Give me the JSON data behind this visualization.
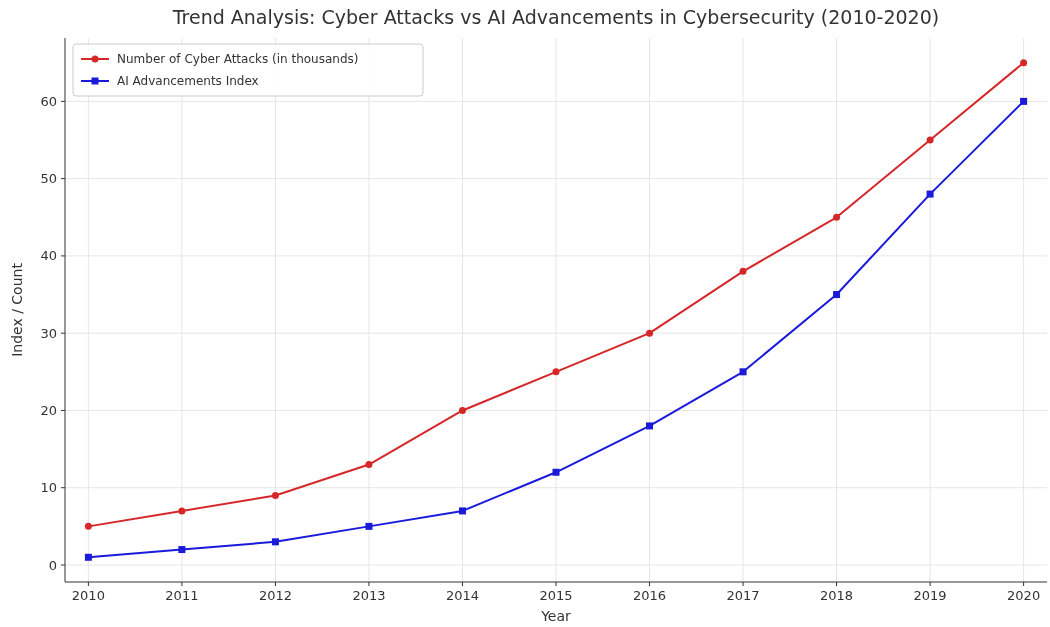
{
  "chart_data": {
    "type": "line",
    "title": "Trend Analysis: Cyber Attacks vs AI Advancements in Cybersecurity (2010-2020)",
    "xlabel": "Year",
    "ylabel": "Index / Count",
    "x": [
      2010,
      2011,
      2012,
      2013,
      2014,
      2015,
      2016,
      2017,
      2018,
      2019,
      2020
    ],
    "xlim": [
      2009.75,
      2020.25
    ],
    "xticks": [
      2010,
      2011,
      2012,
      2013,
      2014,
      2015,
      2016,
      2017,
      2018,
      2019,
      2020
    ],
    "ylim": [
      -2.2,
      68.2
    ],
    "yticks": [
      0,
      10,
      20,
      30,
      40,
      50,
      60
    ],
    "grid": true,
    "legend": "top left",
    "series": [
      {
        "name": "Number of Cyber Attacks (in thousands)",
        "color": "#d62728",
        "marker": "circle",
        "values": [
          5,
          7,
          9,
          13,
          20,
          25,
          30,
          38,
          45,
          55,
          65
        ]
      },
      {
        "name": "AI Advancements Index",
        "color": "#1a1adb",
        "marker": "square",
        "values": [
          1,
          2,
          3,
          5,
          7,
          12,
          18,
          25,
          35,
          48,
          60
        ]
      }
    ]
  }
}
